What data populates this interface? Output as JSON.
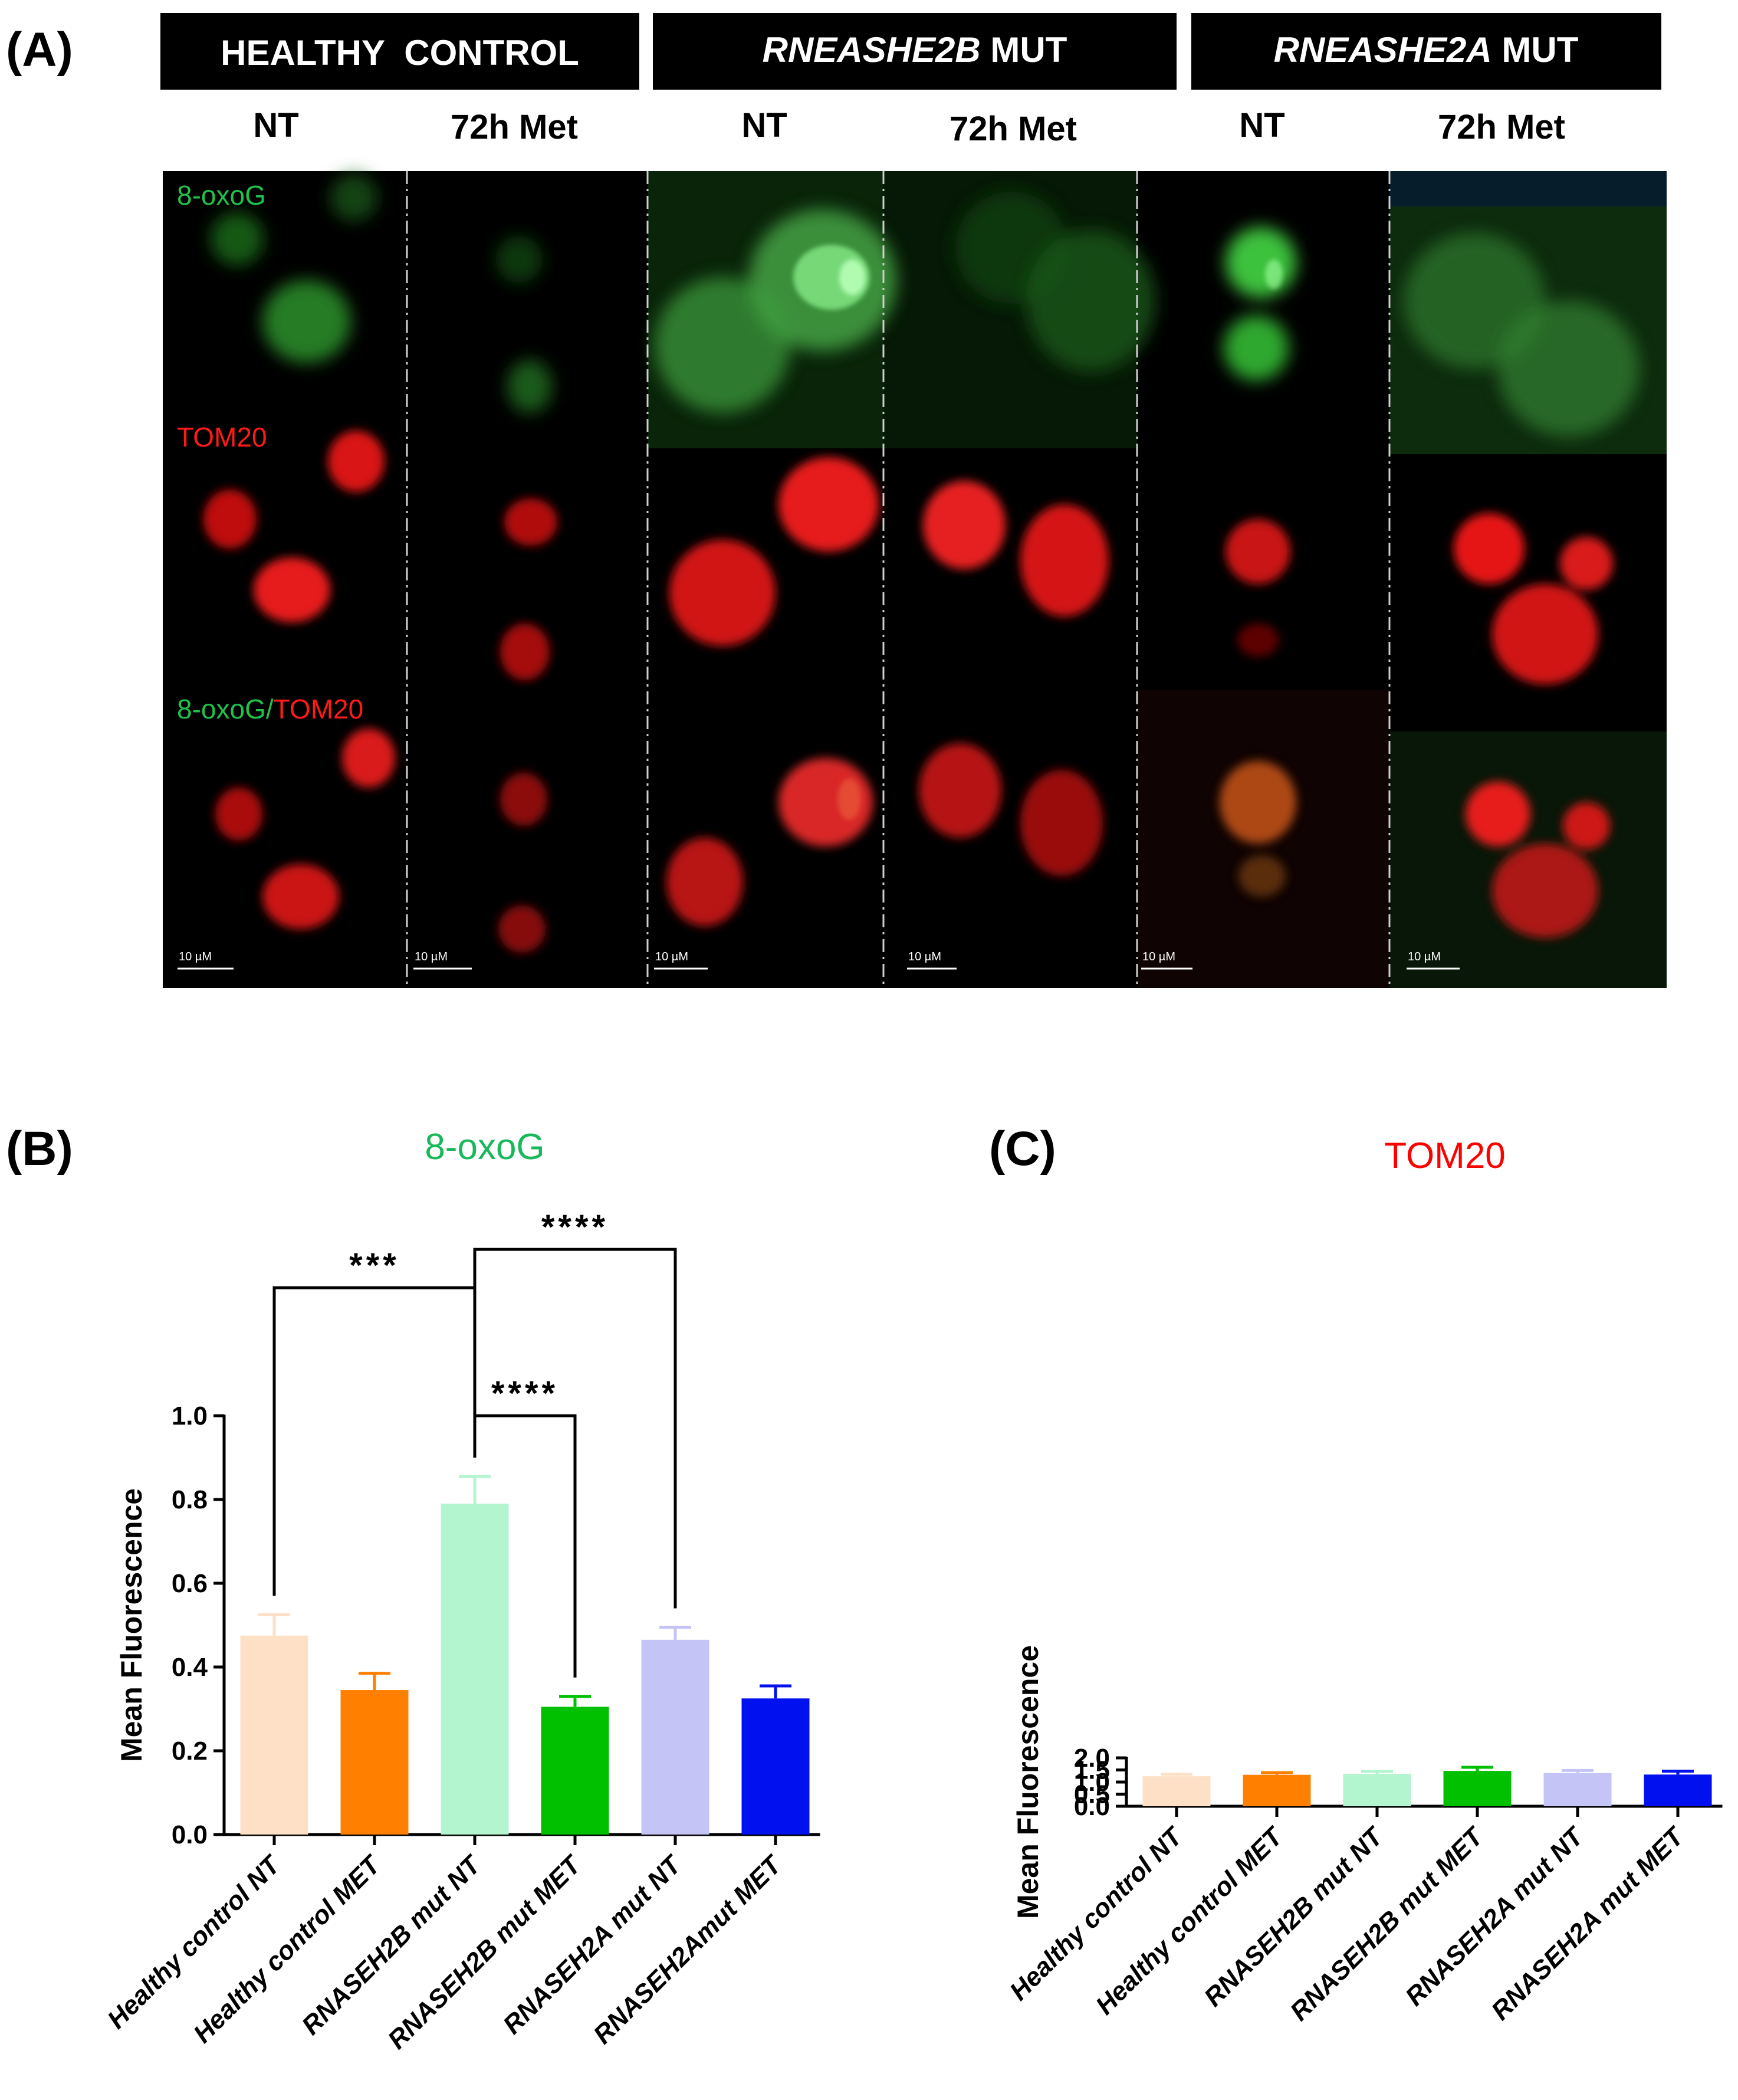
{
  "panel_a": {
    "letter": "(A)",
    "groups": [
      {
        "label": "HEALTHY  CONTROL",
        "gene": "",
        "suffix": ""
      },
      {
        "label": "",
        "gene": "RNEASHE2B",
        "suffix": " MUT"
      },
      {
        "label": "",
        "gene": "RNEASHE2A",
        "suffix": " MUT"
      }
    ],
    "conditions": [
      "NT",
      "72h Met",
      "NT",
      "72h Met",
      "NT",
      "72h Met"
    ],
    "stains": {
      "green": "8-oxoG",
      "red": "TOM20",
      "merge_green": "8-oxoG/",
      "merge_red": "TOM20"
    },
    "scale_bar": "10 µM",
    "colors": {
      "green_stain": "#1fc24a",
      "red_stain": "#ff1a1a"
    }
  },
  "chart_data": [
    {
      "letter": "(B)",
      "type": "bar",
      "title": "8-oxoG",
      "title_color": "#19b85a",
      "ylabel": "Mean Fluorescence",
      "ylim": [
        0,
        1.0
      ],
      "yticks": [
        "0.0",
        "0.2",
        "0.4",
        "0.6",
        "0.8",
        "1.0"
      ],
      "categories": [
        "Healthy control NT",
        "Healthy control MET",
        "RNASEH2B mut NT",
        "RNASEH2B mut MET",
        "RNASEH2A mut NT",
        "RNASEH2Amut  MET"
      ],
      "values": [
        0.475,
        0.345,
        0.79,
        0.305,
        0.465,
        0.325
      ],
      "errors": [
        0.05,
        0.04,
        0.065,
        0.025,
        0.03,
        0.03
      ],
      "colors": [
        "#fde0c5",
        "#ff8000",
        "#b3f5cf",
        "#00c000",
        "#c4c4f7",
        "#0010ee"
      ],
      "significance": [
        {
          "from": 0,
          "to": 2,
          "label": "***"
        },
        {
          "from": 2,
          "to": 4,
          "label": "****"
        },
        {
          "from": 2,
          "to": 3,
          "label": "****"
        }
      ]
    },
    {
      "letter": "(C)",
      "type": "bar",
      "title": "TOM20",
      "title_color": "#ff0000",
      "ylabel": "Mean Fluorescence",
      "ylim": [
        0,
        2.0
      ],
      "yticks": [
        "0.0",
        "0.5",
        "1.0",
        "1.5",
        "2.0"
      ],
      "categories": [
        "Healthy control NT",
        "Healthy control MET",
        "RNASEH2B mut  NT",
        "RNASEH2B mut MET",
        "RNASEH2A mut NT",
        "RNASEH2A mut MET"
      ],
      "values": [
        1.24,
        1.3,
        1.34,
        1.46,
        1.37,
        1.31
      ],
      "errors": [
        0.08,
        0.09,
        0.1,
        0.15,
        0.11,
        0.14
      ],
      "colors": [
        "#fde0c5",
        "#ff8000",
        "#b3f5cf",
        "#00c000",
        "#c4c4f7",
        "#0010ee"
      ],
      "significance": []
    }
  ]
}
